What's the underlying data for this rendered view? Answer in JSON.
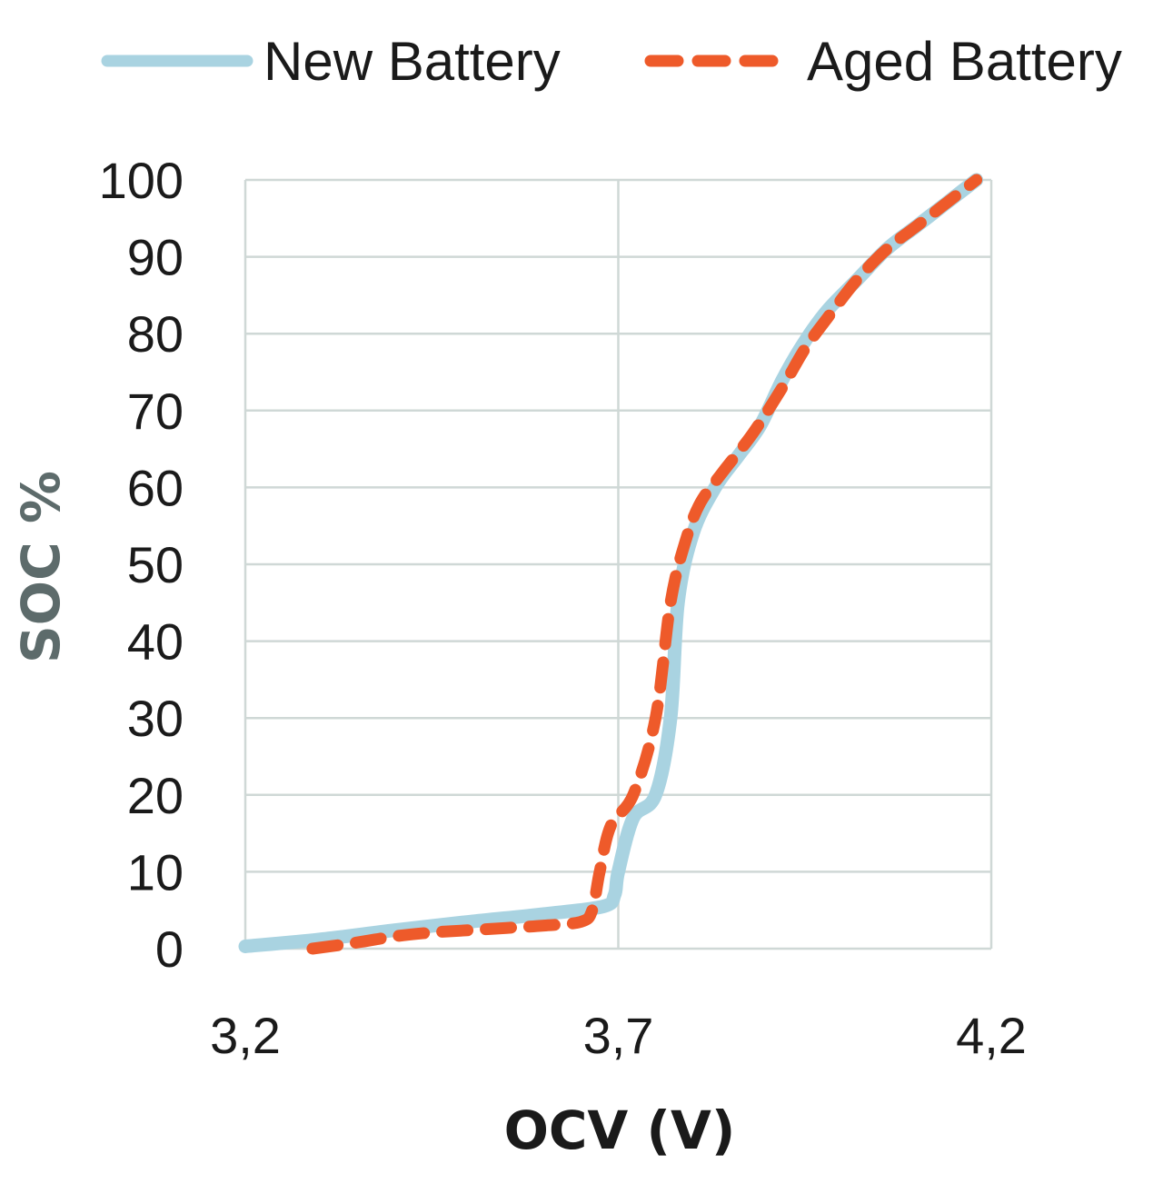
{
  "chart_data": {
    "type": "line",
    "xlabel": "OCV (V)",
    "ylabel": "SOC %",
    "xlim": [
      3.2,
      4.2
    ],
    "ylim": [
      0,
      100
    ],
    "x_ticks": [
      3.2,
      3.7,
      4.2
    ],
    "x_tick_labels": [
      "3,2",
      "3,7",
      "4,2"
    ],
    "y_ticks": [
      0,
      10,
      20,
      30,
      40,
      50,
      60,
      70,
      80,
      90,
      100
    ],
    "y_tick_labels": [
      "0",
      "10",
      "20",
      "30",
      "40",
      "50",
      "60",
      "70",
      "80",
      "90",
      "100"
    ],
    "grid": true,
    "legend_position": "top",
    "series": [
      {
        "name": "New Battery",
        "color": "#a9d3e1",
        "line_style": "solid",
        "x": [
          3.2,
          3.3,
          3.4,
          3.5,
          3.6,
          3.68,
          3.695,
          3.7,
          3.72,
          3.75,
          3.77,
          3.78,
          3.8,
          3.83,
          3.86,
          3.89,
          3.92,
          3.95,
          3.98,
          4.02,
          4.06,
          4.1,
          4.14,
          4.18
        ],
        "y": [
          0.3,
          1.2,
          2.4,
          3.5,
          4.5,
          5.5,
          7,
          10,
          17,
          20,
          30,
          45,
          54,
          60,
          64,
          68,
          74,
          79,
          83,
          87,
          91,
          94,
          97,
          100
        ]
      },
      {
        "name": "Aged Battery",
        "color": "#ee5a2a",
        "line_style": "dashed",
        "x": [
          3.29,
          3.35,
          3.4,
          3.45,
          3.5,
          3.55,
          3.6,
          3.65,
          3.665,
          3.675,
          3.69,
          3.72,
          3.75,
          3.77,
          3.79,
          3.81,
          3.84,
          3.88,
          3.92,
          3.95,
          3.98,
          4.02,
          4.06,
          4.1,
          4.14,
          4.18
        ],
        "y": [
          0,
          0.8,
          1.6,
          2.1,
          2.4,
          2.7,
          3.0,
          3.5,
          5,
          10,
          16,
          20,
          30,
          45,
          53,
          58,
          62,
          67,
          73,
          78,
          82,
          87,
          91,
          94,
          97,
          100
        ]
      }
    ]
  }
}
